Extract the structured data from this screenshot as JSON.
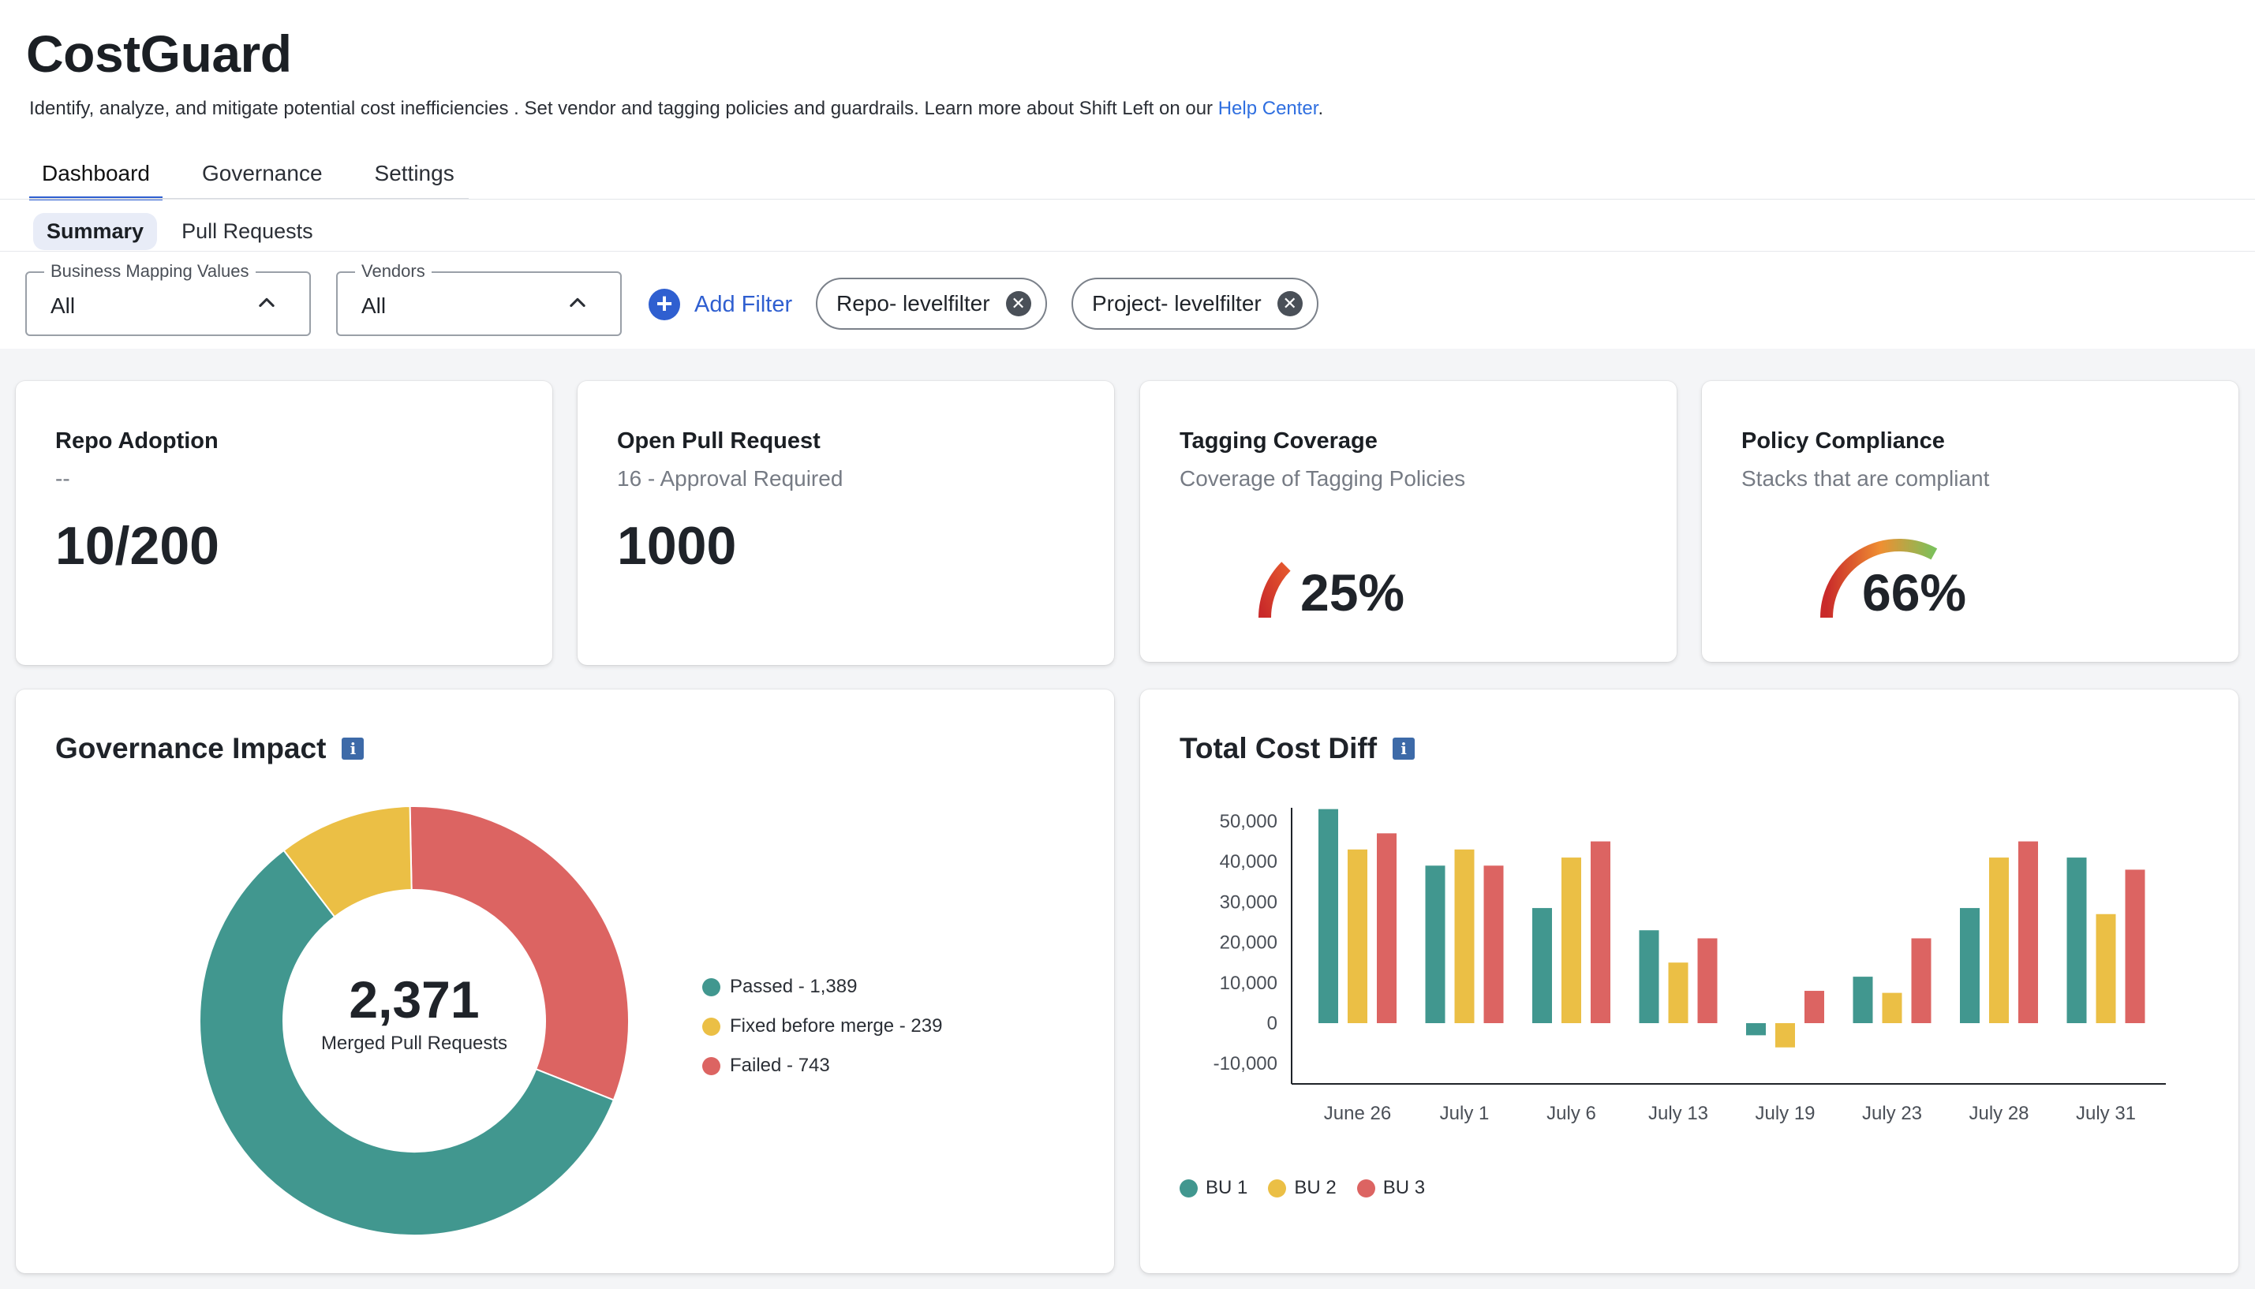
{
  "app": {
    "title": "CostGuard",
    "description": "Identify, analyze, and mitigate potential cost inefficiencies . Set vendor and tagging policies and guardrails. Learn more about Shift Left on our ",
    "help_link": "Help Center",
    "description_end": "."
  },
  "tabs": [
    {
      "label": "Dashboard",
      "active": true
    },
    {
      "label": "Governance",
      "active": false
    },
    {
      "label": "Settings",
      "active": false
    }
  ],
  "subtabs": [
    {
      "label": "Summary",
      "active": true
    },
    {
      "label": "Pull Requests",
      "active": false
    }
  ],
  "filters": {
    "business_mapping": {
      "label": "Business Mapping Values",
      "value": "All"
    },
    "vendors": {
      "label": "Vendors",
      "value": "All"
    },
    "add_filter_label": "Add Filter",
    "chips": [
      {
        "label": "Repo- levelfilter"
      },
      {
        "label": "Project- levelfilter"
      }
    ]
  },
  "kpis": {
    "repo_adoption": {
      "title": "Repo Adoption",
      "subtitle": "--",
      "value": "10/200"
    },
    "open_pr": {
      "title": "Open Pull Request",
      "subtitle": "16 - Approval Required",
      "value": "1000"
    },
    "tagging": {
      "title": "Tagging Coverage",
      "subtitle": "Coverage of Tagging Policies",
      "value": "25%",
      "percent": 25
    },
    "policy": {
      "title": "Policy Compliance",
      "subtitle": "Stacks that are compliant",
      "value": "66%",
      "percent": 66
    }
  },
  "governance_impact": {
    "title": "Governance Impact",
    "info_icon": "info-icon",
    "total": "2,371",
    "total_label": "Merged Pull Requests",
    "legend": [
      {
        "label": "Passed - 1,389",
        "color": "#41978f"
      },
      {
        "label": "Fixed before merge - 239",
        "color": "#ebbf45"
      },
      {
        "label": "Failed - 743",
        "color": "#dc6462"
      }
    ]
  },
  "total_cost_diff": {
    "title": "Total Cost Diff",
    "info_icon": "info-icon",
    "legend": [
      {
        "label": "BU 1",
        "color": "#41978f"
      },
      {
        "label": "BU 2",
        "color": "#ebbf45"
      },
      {
        "label": "BU 3",
        "color": "#dc6462"
      }
    ]
  },
  "chart_data": [
    {
      "type": "pie",
      "title": "Governance Impact",
      "categories": [
        "Passed",
        "Fixed before merge",
        "Failed"
      ],
      "values": [
        1389,
        239,
        743
      ],
      "colors": [
        "#41978f",
        "#ebbf45",
        "#dc6462"
      ],
      "center_text": "2,371",
      "center_label": "Merged Pull Requests",
      "legend_position": "right"
    },
    {
      "type": "bar",
      "title": "Total Cost Diff",
      "categories": [
        "June 26",
        "July 1",
        "July 6",
        "July 13",
        "July 19",
        "July 23",
        "July 28",
        "July 31"
      ],
      "series": [
        {
          "name": "BU 1",
          "color": "#41978f",
          "values": [
            53000,
            39000,
            28500,
            23000,
            -3000,
            11500,
            28500,
            41000
          ]
        },
        {
          "name": "BU 2",
          "color": "#ebbf45",
          "values": [
            43000,
            43000,
            41000,
            15000,
            -6000,
            7500,
            41000,
            27000
          ]
        },
        {
          "name": "BU 3",
          "color": "#dc6462",
          "values": [
            47000,
            39000,
            45000,
            21000,
            8000,
            21000,
            45000,
            38000
          ]
        }
      ],
      "yticks": [
        "50,000",
        "40,000",
        "30,000",
        "20,000",
        "10,000",
        "0",
        "-10,000"
      ],
      "ylim": [
        -15000,
        55000
      ],
      "legend_position": "bottom-left"
    }
  ]
}
